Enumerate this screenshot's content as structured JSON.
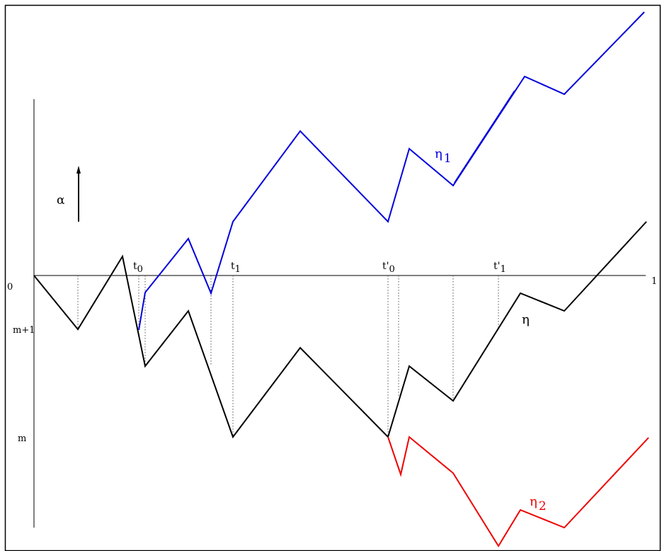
{
  "labels": {
    "origin": "0",
    "right_end": "1",
    "level_m_plus_1": "m+1",
    "level_m": "m",
    "alpha": "α",
    "t0_base": "t",
    "t0_sub": "0",
    "t1_base": "t",
    "t1_sub": "1",
    "tp0_base": "t'",
    "tp0_sub": "0",
    "tp1_base": "t'",
    "tp1_sub": "1",
    "eta": "η",
    "eta1_base": "η",
    "eta1_sub": "1",
    "eta2_base": "η",
    "eta2_sub": "2"
  },
  "colors": {
    "eta": "#000000",
    "eta1": "#0000dd",
    "eta2": "#ee0000",
    "axes": "#000000",
    "guides": "#555555"
  }
}
